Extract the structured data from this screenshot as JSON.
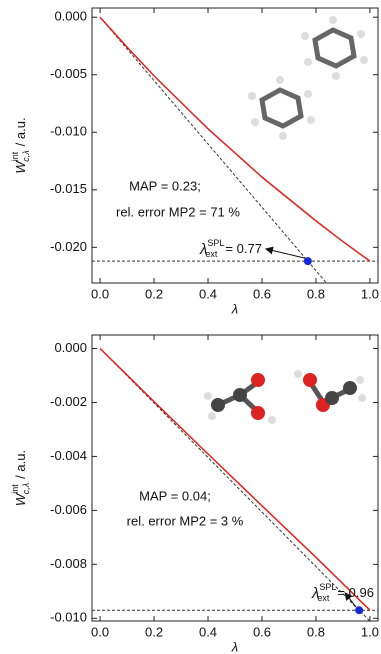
{
  "chart_data": [
    {
      "type": "line",
      "x_label": "λ",
      "y_label": {
        "main": "W",
        "sup": "int",
        "sub": "c,λ",
        "unit": "/ a.u."
      },
      "xlim": [
        -0.03,
        1.03
      ],
      "xticks": [
        {
          "value": 0,
          "label": "0.0"
        },
        {
          "value": 0.2,
          "label": "0.2"
        },
        {
          "value": 0.4,
          "label": "0.4"
        },
        {
          "value": 0.6,
          "label": "0.6"
        },
        {
          "value": 0.8,
          "label": "0.8"
        },
        {
          "value": 1,
          "label": "1.0"
        }
      ],
      "ylim": [
        -0.0231,
        0.0008
      ],
      "yticks": [
        {
          "value": 0,
          "label": "0.000"
        },
        {
          "value": -0.005,
          "label": "-0.005"
        },
        {
          "value": -0.01,
          "label": "-0.010"
        },
        {
          "value": -0.015,
          "label": "-0.015"
        },
        {
          "value": -0.02,
          "label": "-0.020"
        }
      ],
      "series": [
        {
          "color": "#e0201b",
          "x": [
            0,
            0.1,
            0.2,
            0.3,
            0.4,
            0.5,
            0.6,
            0.7,
            0.8,
            0.9,
            1.0
          ],
          "values": [
            0,
            -0.0026,
            -0.0051,
            -0.0074,
            -0.0097,
            -0.0118,
            -0.0139,
            -0.0158,
            -0.0177,
            -0.0195,
            -0.0212
          ]
        }
      ],
      "point": {
        "x": 0.77,
        "y": -0.0212,
        "color": "#1228d6"
      },
      "annotations": [
        "MAP = 0.23;",
        "rel. error MP2 = 71 %"
      ],
      "point_label": {
        "symbol": "λ",
        "sup": "SPL",
        "sub": "ext",
        "text": "= 0.77"
      }
    },
    {
      "type": "line",
      "x_label": "λ",
      "y_label": {
        "main": "W",
        "sup": "int",
        "sub": "c,λ",
        "unit": "/ a.u."
      },
      "xlim": [
        -0.03,
        1.03
      ],
      "xticks": [
        {
          "value": 0,
          "label": "0.0"
        },
        {
          "value": 0.2,
          "label": "0.2"
        },
        {
          "value": 0.4,
          "label": "0.4"
        },
        {
          "value": 0.6,
          "label": "0.6"
        },
        {
          "value": 0.8,
          "label": "0.8"
        },
        {
          "value": 1,
          "label": "1.0"
        }
      ],
      "ylim": [
        -0.0101,
        0.0005
      ],
      "yticks": [
        {
          "value": 0,
          "label": "0.000"
        },
        {
          "value": -0.002,
          "label": "-0.002"
        },
        {
          "value": -0.004,
          "label": "-0.004"
        },
        {
          "value": -0.006,
          "label": "-0.006"
        },
        {
          "value": -0.008,
          "label": "-0.008"
        },
        {
          "value": -0.01,
          "label": "-0.010"
        }
      ],
      "series": [
        {
          "color": "#e0201b",
          "x": [
            0,
            0.2,
            0.4,
            0.6,
            0.8,
            1.0
          ],
          "values": [
            0,
            -0.00197,
            -0.00391,
            -0.00583,
            -0.00774,
            -0.0097
          ]
        }
      ],
      "point": {
        "x": 0.96,
        "y": -0.0097,
        "color": "#1228d6"
      },
      "annotations": [
        "MAP = 0.04;",
        "rel. error MP2 = 3 %"
      ],
      "point_label": {
        "symbol": "λ",
        "sup": "SPL",
        "sub": "ext",
        "text": "= 0.96"
      }
    }
  ]
}
